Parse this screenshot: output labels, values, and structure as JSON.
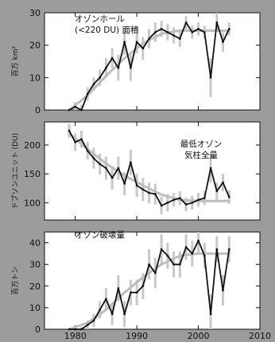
{
  "chart_data": [
    {
      "type": "line",
      "title": "オゾンホール\n(<220 DU) 面積",
      "ylabel": "百万 km²",
      "xlim": [
        1975,
        2010
      ],
      "ylim": [
        0,
        30
      ],
      "yticks": [
        0,
        10,
        20,
        30
      ],
      "series": [
        {
          "x": [
            1979,
            1980,
            1981,
            1982,
            1983,
            1984,
            1985,
            1986,
            1987,
            1988,
            1989,
            1990,
            1991,
            1992,
            1993,
            1994,
            1995,
            1996,
            1997,
            1998,
            1999,
            2000,
            2001,
            2002,
            2003,
            2004,
            2005
          ],
          "y": [
            0,
            1,
            0,
            5,
            8,
            10,
            13,
            16,
            13,
            21,
            13,
            21,
            19,
            22,
            24,
            25,
            24,
            23,
            22,
            27,
            24,
            25,
            24,
            10,
            27,
            21,
            25
          ],
          "err": [
            0.5,
            1.5,
            1.5,
            2,
            2,
            2.5,
            3,
            3,
            4,
            4,
            4,
            3.5,
            3.5,
            3,
            3,
            2.5,
            2.5,
            2.5,
            2.5,
            2,
            2,
            2,
            2,
            6,
            3,
            3,
            2
          ]
        }
      ],
      "fit": {
        "x": [
          1979,
          1982,
          1985,
          1988,
          1991,
          1994,
          1997,
          2000,
          2003,
          2005
        ],
        "y": [
          0,
          4.5,
          10.5,
          16,
          20.5,
          23.5,
          24.5,
          24.5,
          24.5,
          24.5
        ]
      }
    },
    {
      "type": "line",
      "title": "最低オゾン\n気柱全量",
      "ylabel": "ドブソンユニット (DU)",
      "xlim": [
        1975,
        2010
      ],
      "ylim": [
        70,
        240
      ],
      "yticks": [
        100,
        150,
        200
      ],
      "series": [
        {
          "x": [
            1979,
            1980,
            1981,
            1982,
            1983,
            1984,
            1985,
            1986,
            1987,
            1988,
            1989,
            1990,
            1991,
            1992,
            1993,
            1994,
            1995,
            1996,
            1997,
            1998,
            1999,
            2000,
            2001,
            2002,
            2003,
            2004,
            2005
          ],
          "y": [
            225,
            205,
            210,
            190,
            177,
            167,
            160,
            143,
            160,
            133,
            170,
            130,
            123,
            117,
            115,
            95,
            100,
            105,
            108,
            97,
            100,
            105,
            108,
            160,
            120,
            135,
            110
          ],
          "err": [
            12,
            15,
            15,
            15,
            18,
            18,
            20,
            20,
            20,
            20,
            22,
            20,
            20,
            18,
            18,
            15,
            15,
            12,
            12,
            12,
            12,
            12,
            12,
            25,
            15,
            15,
            12
          ]
        }
      ],
      "fit": {
        "x": [
          1979,
          1982,
          1985,
          1988,
          1991,
          1994,
          1997,
          2000,
          2003,
          2005
        ],
        "y": [
          220,
          193,
          168,
          147,
          130,
          114,
          105,
          103,
          103,
          103
        ]
      }
    },
    {
      "type": "line",
      "title": "オゾン破壊量",
      "ylabel": "百万トン",
      "xlabel": "",
      "xlim": [
        1975,
        2010
      ],
      "ylim": [
        0,
        45
      ],
      "yticks": [
        0,
        10,
        20,
        30,
        40
      ],
      "xticks": [
        1980,
        1990,
        2000,
        2010
      ],
      "series": [
        {
          "x": [
            1979,
            1980,
            1981,
            1982,
            1983,
            1984,
            1985,
            1986,
            1987,
            1988,
            1989,
            1990,
            1991,
            1992,
            1993,
            1994,
            1995,
            1996,
            1997,
            1998,
            1999,
            2000,
            2001,
            2002,
            2003,
            2004,
            2005
          ],
          "y": [
            0,
            0,
            0,
            2,
            4,
            9,
            14,
            7,
            19,
            7,
            17,
            17,
            20,
            30,
            26,
            37,
            34,
            30,
            30,
            38,
            35,
            41,
            34,
            7,
            37,
            18,
            37
          ],
          "err": [
            0.5,
            1,
            1,
            2,
            3,
            4,
            5,
            5,
            6,
            6,
            6,
            6,
            6,
            7,
            7,
            7,
            6,
            6,
            6,
            6,
            6,
            6,
            6,
            9,
            6,
            7,
            6
          ]
        }
      ],
      "fit": {
        "x": [
          1979,
          1982,
          1985,
          1988,
          1991,
          1994,
          1997,
          2000,
          2003,
          2005
        ],
        "y": [
          0,
          3,
          9,
          17,
          24,
          30,
          34,
          35,
          35,
          35
        ]
      }
    }
  ]
}
